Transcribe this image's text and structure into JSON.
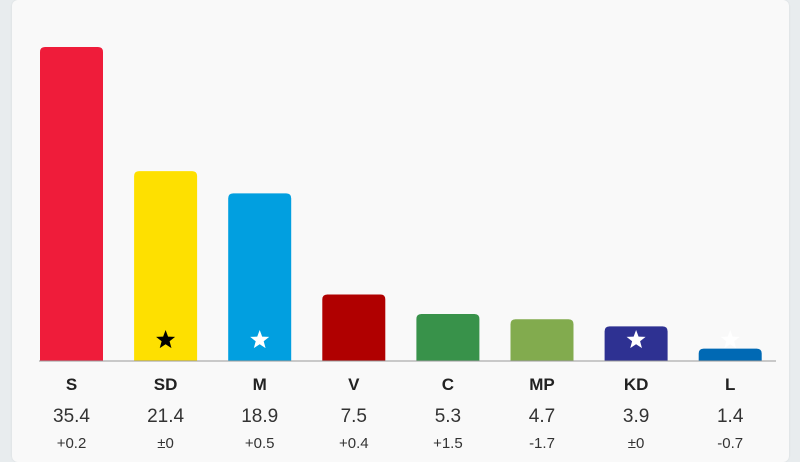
{
  "chart_data": {
    "type": "bar",
    "categories": [
      "S",
      "SD",
      "M",
      "V",
      "C",
      "MP",
      "KD",
      "L"
    ],
    "values": [
      35.4,
      21.4,
      18.9,
      7.5,
      5.3,
      4.7,
      3.9,
      1.4
    ],
    "value_labels": [
      "35.4",
      "21.4",
      "18.9",
      "7.5",
      "5.3",
      "4.7",
      "3.9",
      "1.4"
    ],
    "changes": [
      "+0.2",
      "±0",
      "+0.5",
      "+0.4",
      "+1.5",
      "-1.7",
      "±0",
      "-0.7"
    ],
    "colors": [
      "#ef1c3a",
      "#fee000",
      "#019fe0",
      "#b00000",
      "#38924a",
      "#82ab4e",
      "#2e3192",
      "#0069b4"
    ],
    "markers": [
      "",
      "star-icon-black",
      "star-icon-white",
      "",
      "",
      "",
      "star-icon-white",
      "star-icon-white"
    ],
    "ylim": [
      0,
      35.4
    ],
    "grid": false
  }
}
